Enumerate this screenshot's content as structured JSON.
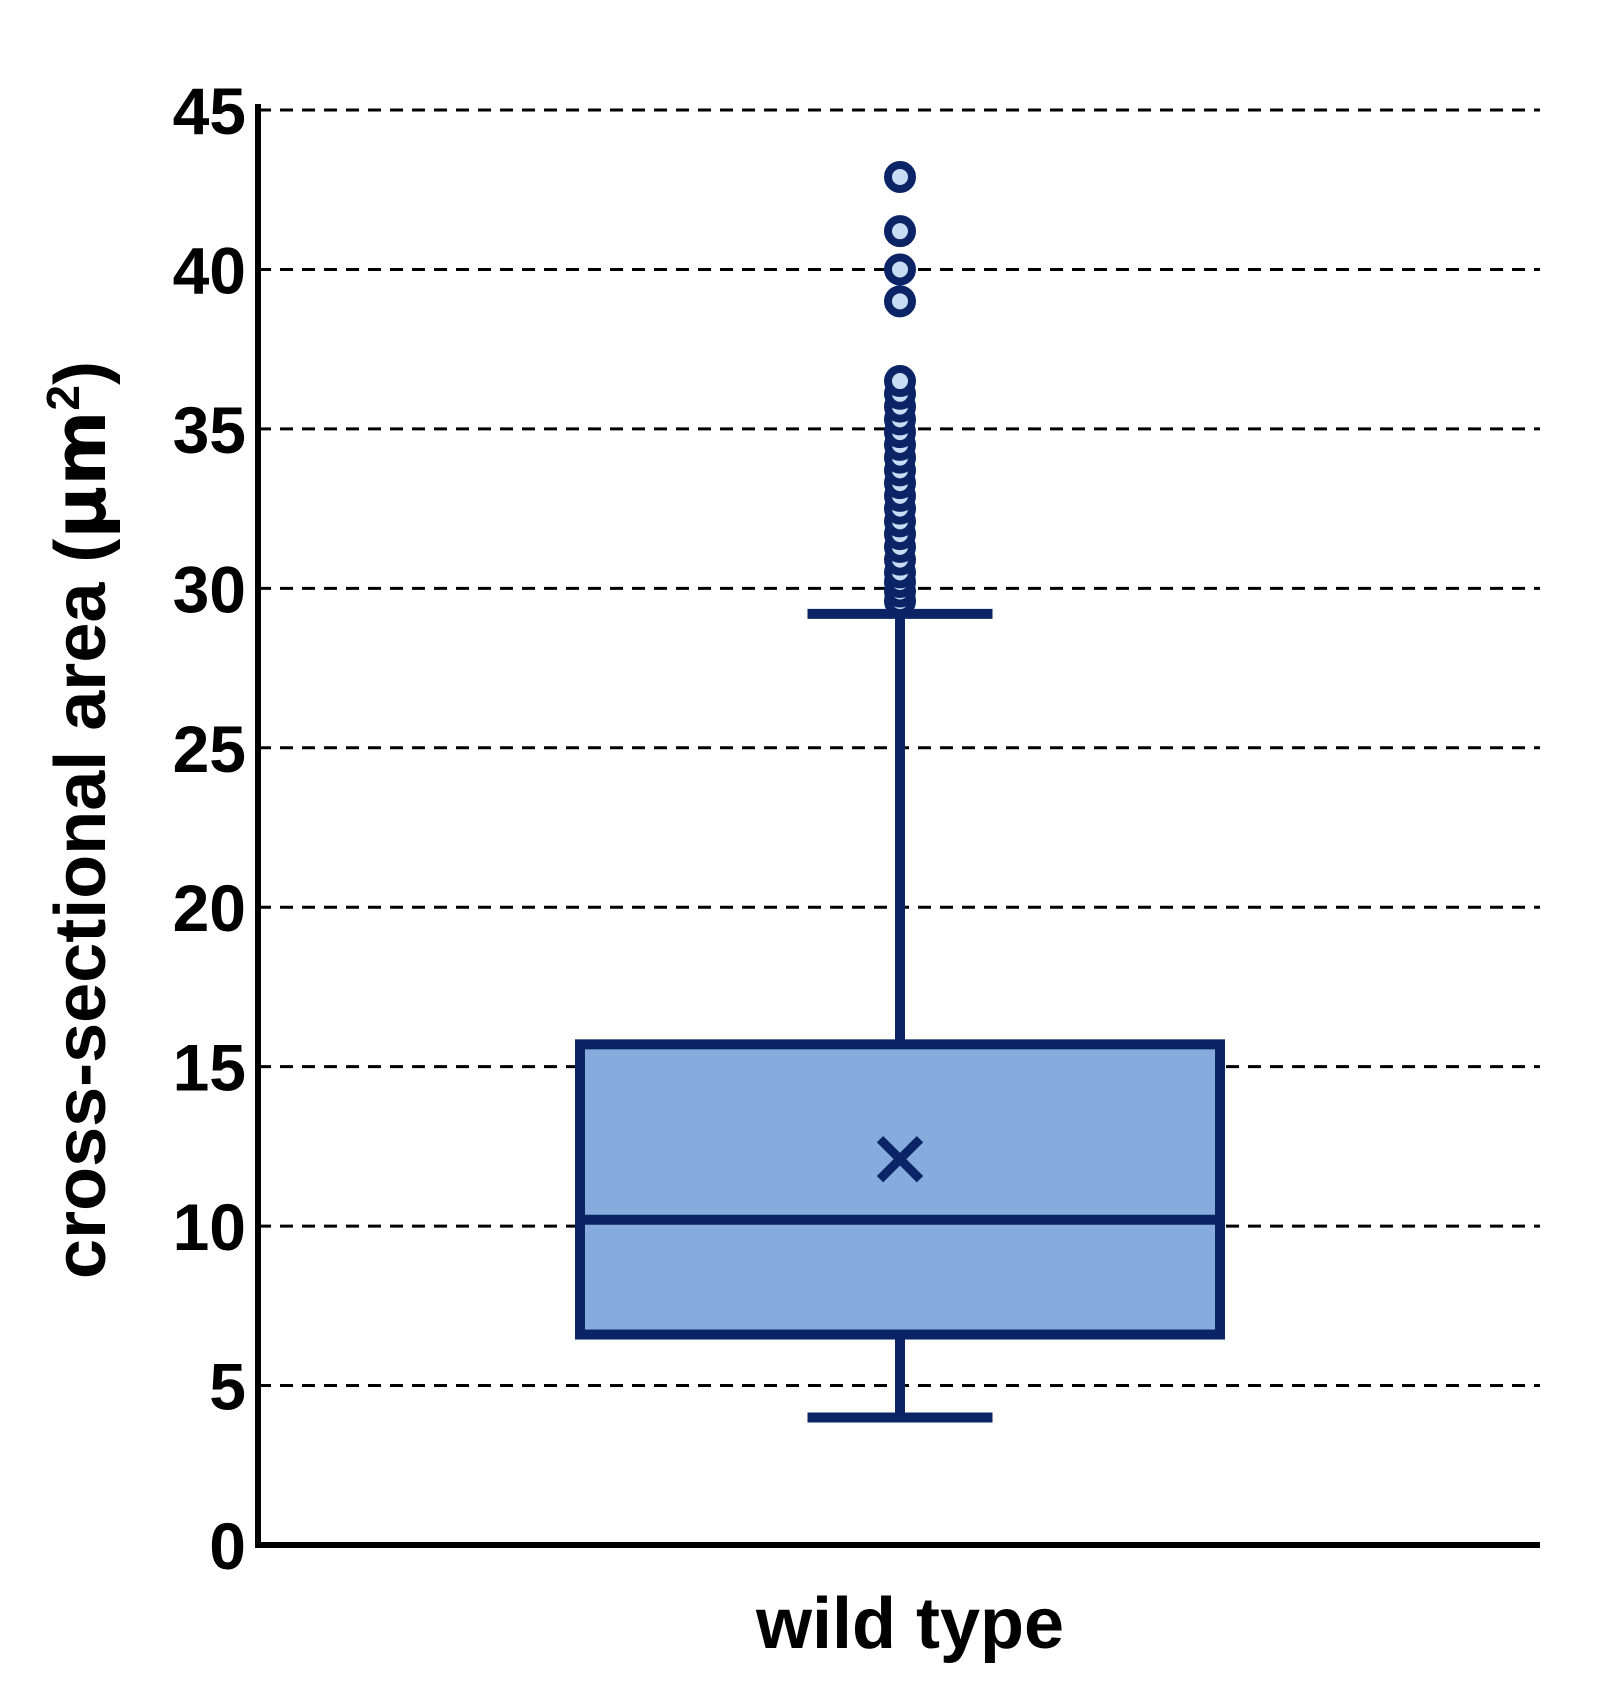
{
  "chart_data": {
    "type": "box",
    "categories": [
      "wild type"
    ],
    "ylabel": "cross-sectional area (µm²)",
    "ylabel_parts": {
      "main": "cross-sectional area (",
      "unit": "µm",
      "superscript": "2",
      "close": ")"
    },
    "ylim": [
      0,
      45
    ],
    "yticks": [
      0,
      5,
      10,
      15,
      20,
      25,
      30,
      35,
      40,
      45
    ],
    "grid": true,
    "grid_style": "dashed",
    "series": [
      {
        "category": "wild type",
        "whisker_low": 4.0,
        "q1": 6.6,
        "median": 10.2,
        "q3": 15.7,
        "whisker_high": 29.2,
        "mean": 12.1,
        "outliers": [
          29.6,
          29.9,
          30.2,
          30.5,
          30.9,
          31.3,
          31.7,
          32.1,
          32.5,
          32.9,
          33.3,
          33.7,
          34.1,
          34.5,
          34.9,
          35.3,
          35.7,
          36.1,
          36.5,
          39.0,
          40.0,
          41.2,
          42.9
        ]
      }
    ],
    "colors": {
      "box_fill": "#85acdd",
      "box_stroke": "#0b2466",
      "outlier_fill": "#c8dcf3",
      "axis": "#000000",
      "grid": "#000000"
    }
  }
}
